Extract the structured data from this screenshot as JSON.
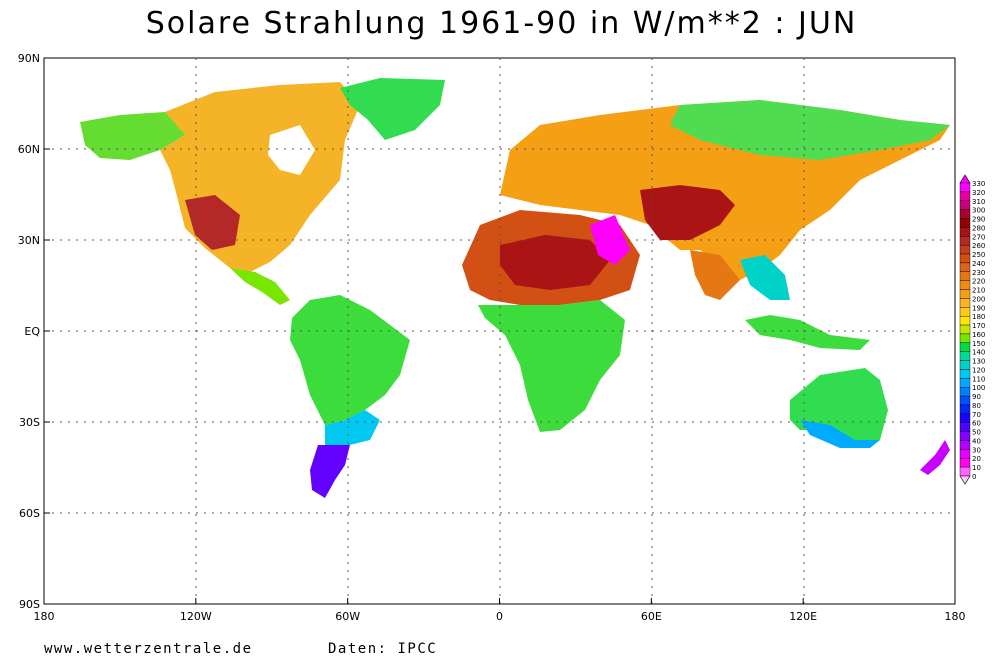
{
  "title": "Solare Strahlung 1961-90 in W/m**2 : JUN",
  "footer": {
    "website": "www.wetterzentrale.de",
    "source": "Daten: IPCC"
  },
  "map": {
    "projection": "equirectangular",
    "lon_range": [
      -180,
      180
    ],
    "lat_range": [
      -90,
      90
    ],
    "grid": true,
    "x_tick_labels": [
      "180",
      "120W",
      "60W",
      "0",
      "60E",
      "120E",
      "180"
    ],
    "y_tick_labels": [
      "90N",
      "60N",
      "30N",
      "EQ",
      "30S",
      "60S",
      "90S"
    ]
  },
  "colorbar": {
    "placement": "right",
    "labels": [
      "330",
      "320",
      "310",
      "300",
      "290",
      "280",
      "270",
      "260",
      "250",
      "240",
      "230",
      "220",
      "210",
      "200",
      "190",
      "180",
      "170",
      "160",
      "150",
      "140",
      "130",
      "120",
      "110",
      "100",
      "90",
      "80",
      "70",
      "60",
      "50",
      "40",
      "30",
      "20",
      "10",
      "0"
    ],
    "colors": [
      "#ff00ff",
      "#e600a0",
      "#c80078",
      "#aa0030",
      "#960000",
      "#a51414",
      "#b42828",
      "#c83c1e",
      "#d25014",
      "#dc6414",
      "#e67814",
      "#f08c14",
      "#f5a014",
      "#fab41e",
      "#ffc81e",
      "#ffe600",
      "#c8e600",
      "#78e600",
      "#00dc46",
      "#00dc96",
      "#00d2c8",
      "#00c8f0",
      "#00aaff",
      "#0082ff",
      "#0050ff",
      "#0028ff",
      "#1e00ff",
      "#5000ff",
      "#8200ff",
      "#b400ff",
      "#e600ff",
      "#ff00f0",
      "#ff64ff",
      "#ffc8ff"
    ]
  },
  "regions": [
    {
      "name": "north-america",
      "color": "#f5b428"
    },
    {
      "name": "southwest-usa",
      "color": "#b42828"
    },
    {
      "name": "central-america",
      "color": "#78e600"
    },
    {
      "name": "alaska",
      "color": "#64dc32"
    },
    {
      "name": "greenland",
      "color": "#32dc50"
    },
    {
      "name": "south-america",
      "color": "#3cdc3c"
    },
    {
      "name": "south-america-south",
      "color": "#00c8f0"
    },
    {
      "name": "patagonia",
      "color": "#6400ff"
    },
    {
      "name": "africa-north",
      "color": "#d25014"
    },
    {
      "name": "sahara",
      "color": "#aa1414"
    },
    {
      "name": "africa-south",
      "color": "#3cdc3c"
    },
    {
      "name": "arabia",
      "color": "#ff00ff"
    },
    {
      "name": "eurasia",
      "color": "#f5a014"
    },
    {
      "name": "siberia",
      "color": "#50dc50"
    },
    {
      "name": "central-asia",
      "color": "#aa1414"
    },
    {
      "name": "india",
      "color": "#e67814"
    },
    {
      "name": "southeast-asia",
      "color": "#00d2c8"
    },
    {
      "name": "australia",
      "color": "#32dc50"
    },
    {
      "name": "new-zealand",
      "color": "#c800ff"
    }
  ]
}
